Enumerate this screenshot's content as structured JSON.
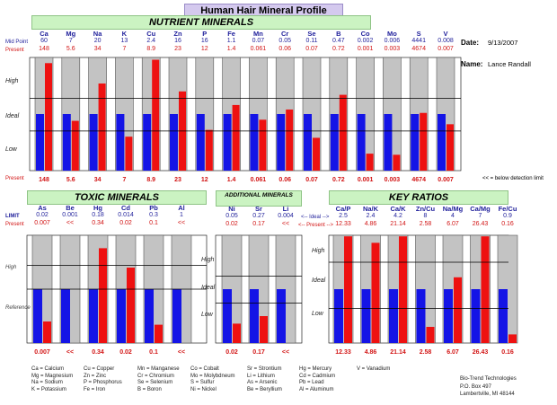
{
  "title": "Human Hair Mineral Profile",
  "sections": {
    "nutrient": "NUTRIENT MINERALS",
    "toxic": "TOXIC MINERALS",
    "additional": "ADDITIONAL MINERALS",
    "ratios": "KEY RATIOS"
  },
  "row_labels": {
    "mid_point": "Mid Point",
    "present": "Present",
    "limit": "LIMIT",
    "present2": "Present",
    "ideal_word": "Ideal"
  },
  "zones": {
    "high": "High",
    "ideal": "Ideal",
    "low": "Low",
    "reference": "Reference"
  },
  "date_label": "Date:",
  "date_value": "9/13/2007",
  "name_label": "Name:",
  "name_value": "Lance Randall",
  "detection_note": "<< = below detection limit",
  "ideal_marker": "<-- Ideal -->",
  "present_marker": "<-- Present -->",
  "nutrients": [
    {
      "sym": "Ca",
      "mid": "60",
      "pres": "148",
      "bar": 0.95
    },
    {
      "sym": "Mg",
      "mid": "7",
      "pres": "5.6",
      "bar": 0.44
    },
    {
      "sym": "Na",
      "mid": "20",
      "pres": "34",
      "bar": 0.77
    },
    {
      "sym": "K",
      "mid": "13",
      "pres": "7",
      "bar": 0.3
    },
    {
      "sym": "Cu",
      "mid": "2.4",
      "pres": "8.9",
      "bar": 0.98
    },
    {
      "sym": "Zn",
      "pres": "23",
      "mid": "16",
      "bar": 0.7
    },
    {
      "sym": "P",
      "mid": "16",
      "pres": "12",
      "bar": 0.36
    },
    {
      "sym": "Fe",
      "mid": "1.1",
      "pres": "1.4",
      "bar": 0.58
    },
    {
      "sym": "Mn",
      "mid": "0.07",
      "pres": "0.061",
      "bar": 0.45
    },
    {
      "sym": "Cr",
      "mid": "0.05",
      "pres": "0.06",
      "bar": 0.54
    },
    {
      "sym": "Se",
      "mid": "0.11",
      "pres": "0.07",
      "bar": 0.29
    },
    {
      "sym": "B",
      "mid": "0.47",
      "pres": "0.72",
      "bar": 0.67
    },
    {
      "sym": "Co",
      "mid": "0.002",
      "pres": "0.001",
      "bar": 0.15
    },
    {
      "sym": "Mo",
      "mid": "0.006",
      "pres": "0.003",
      "bar": 0.14
    },
    {
      "sym": "S",
      "mid": "4441",
      "pres": "4674",
      "bar": 0.51
    },
    {
      "sym": "V",
      "mid": "0.008",
      "pres": "0.007",
      "bar": 0.41
    }
  ],
  "toxics": [
    {
      "sym": "As",
      "limit": "0.02",
      "pres": "0.007",
      "bar": 0.2
    },
    {
      "sym": "Be",
      "limit": "0.001",
      "pres": "<<",
      "bar": 0.0
    },
    {
      "sym": "Hg",
      "limit": "0.18",
      "pres": "0.34",
      "bar": 0.88
    },
    {
      "sym": "Cd",
      "limit": "0.014",
      "pres": "0.02",
      "bar": 0.7
    },
    {
      "sym": "Pb",
      "limit": "0.3",
      "pres": "0.1",
      "bar": 0.17
    },
    {
      "sym": "Al",
      "limit": "1",
      "pres": "<<",
      "bar": 0.0
    }
  ],
  "additional": [
    {
      "sym": "Ni",
      "ideal": "0.05",
      "pres": "0.02",
      "bar": 0.18
    },
    {
      "sym": "Sr",
      "ideal": "0.27",
      "pres": "0.17",
      "bar": 0.25
    },
    {
      "sym": "Li",
      "ideal": "0.004",
      "pres": "<<",
      "bar": 0.0
    }
  ],
  "ratios": [
    {
      "sym": "Ca/P",
      "ideal": "2.5",
      "pres": "12.33",
      "bar": 0.99
    },
    {
      "sym": "Na/K",
      "ideal": "2.4",
      "pres": "4.86",
      "bar": 0.93
    },
    {
      "sym": "Ca/K",
      "ideal": "4.2",
      "pres": "21.14",
      "bar": 0.99
    },
    {
      "sym": "Zn/Cu",
      "ideal": "8",
      "pres": "2.58",
      "bar": 0.15
    },
    {
      "sym": "Na/Mg",
      "ideal": "4",
      "pres": "6.07",
      "bar": 0.61
    },
    {
      "sym": "Ca/Mg",
      "ideal": "7",
      "pres": "26.43",
      "bar": 0.99
    },
    {
      "sym": "Fe/Cu",
      "ideal": "0.9",
      "pres": "0.16",
      "bar": 0.08
    }
  ],
  "legend": [
    [
      "Ca = Calcium",
      "Mg = Magnesium",
      "Na = Sodium",
      "K = Potassium"
    ],
    [
      "Cu = Copper",
      "Zn = Zinc",
      "P = Phosphorus",
      "Fe = Iron"
    ],
    [
      "Mn = Manganese",
      "Cr = Chromium",
      "Se = Selenium",
      "B = Boron"
    ],
    [
      "Co = Cobalt",
      "Mo = Molybdneum",
      "S = Sulfur",
      "Ni = Nickel"
    ],
    [
      "Sr = Strontium",
      "Li = Lithium",
      "As = Arsenic",
      "Be = Beryllium"
    ],
    [
      "Hg = Mercury",
      "Cd = Cadmium",
      "Pb = Lead",
      "Al = Aluminum"
    ],
    [
      "V = Vanadium"
    ]
  ],
  "company": [
    "Bio-Trend Technologies",
    "P.O. Box 497",
    "Lambertville, MI  48144"
  ],
  "colors": {
    "blue": "#1414e6",
    "red": "#ee1111",
    "gray": "#c3c3c3"
  }
}
